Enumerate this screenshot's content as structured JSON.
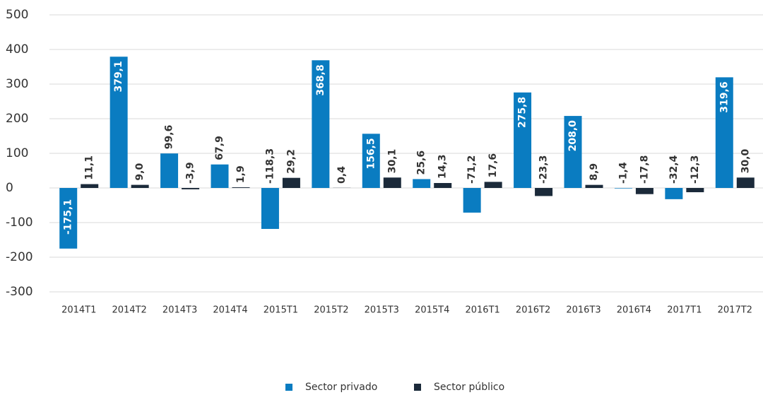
{
  "chart_data": {
    "type": "bar",
    "categories": [
      "2014T1",
      "2014T2",
      "2014T3",
      "2014T4",
      "2015T1",
      "2015T2",
      "2015T3",
      "2015T4",
      "2016T1",
      "2016T2",
      "2016T3",
      "2016T4",
      "2017T1",
      "2017T2"
    ],
    "series": [
      {
        "name": "Sector privado",
        "color": "#0a7cc1",
        "values": [
          -175.1,
          379.1,
          99.6,
          67.9,
          -118.3,
          368.8,
          156.5,
          25.6,
          -71.2,
          275.8,
          208.0,
          -1.4,
          -32.4,
          319.6
        ],
        "value_labels": [
          "-175,1",
          "379,1",
          "99,6",
          "67,9",
          "-118,3",
          "368,8",
          "156,5",
          "25,6",
          "-71,2",
          "275,8",
          "208,0",
          "-1,4",
          "-32,4",
          "319,6"
        ]
      },
      {
        "name": "Sector público",
        "color": "#1b2a3a",
        "values": [
          11.1,
          9.0,
          -3.9,
          1.9,
          29.2,
          0.4,
          30.1,
          14.3,
          17.6,
          -23.3,
          8.9,
          -17.8,
          -12.3,
          30.0
        ],
        "value_labels": [
          "11,1",
          "9,0",
          "-3,9",
          "1,9",
          "29,2",
          "0,4",
          "30,1",
          "14,3",
          "17,6",
          "-23,3",
          "8,9",
          "-17,8",
          "-12,3",
          "30,0"
        ]
      }
    ],
    "ylim": [
      -300,
      500
    ],
    "yticks": [
      -300,
      -200,
      -100,
      0,
      100,
      200,
      300,
      400,
      500
    ],
    "grid": true,
    "legend": "bottom"
  }
}
